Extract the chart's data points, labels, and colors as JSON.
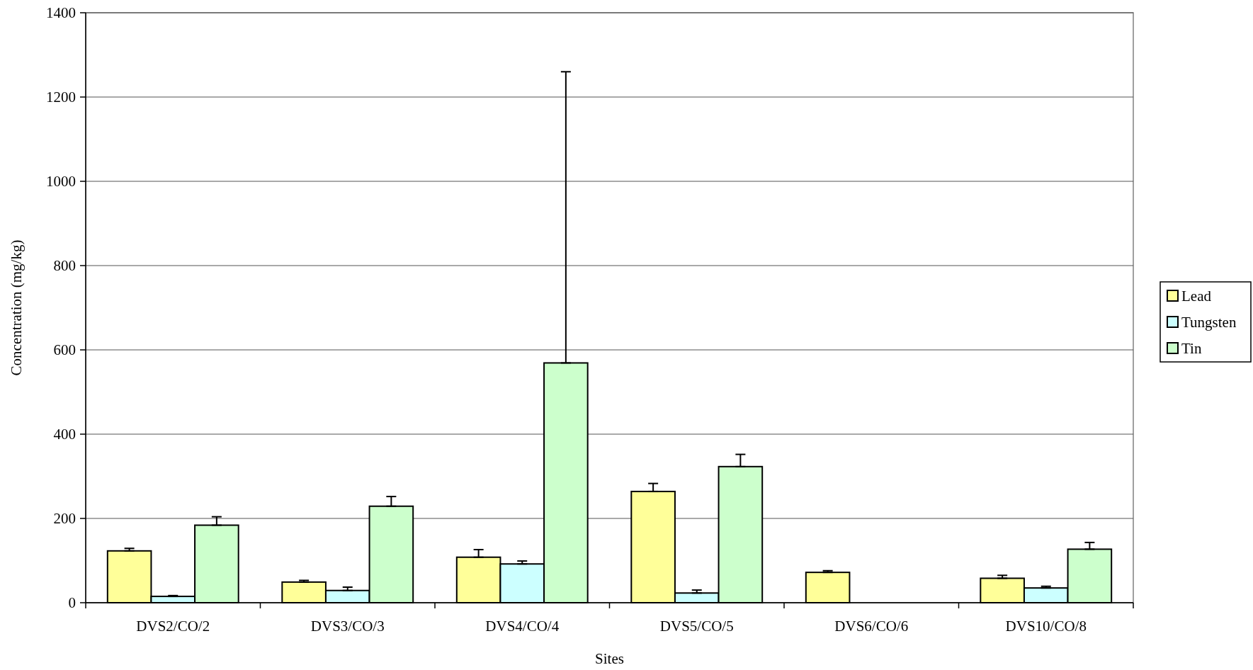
{
  "chart_data": {
    "type": "bar",
    "xlabel": "Sites",
    "ylabel": "Concentration (mg/kg)",
    "categories": [
      "DVS2/CO/2",
      "DVS3/CO/3",
      "DVS4/CO/4",
      "DVS5/CO/5",
      "DVS6/CO/6",
      "DVS10/CO/8"
    ],
    "series": [
      {
        "name": "Lead",
        "color": "#ffff99",
        "values": [
          123,
          49,
          108,
          264,
          72,
          58
        ],
        "errors": [
          [
            123,
            129
          ],
          [
            49,
            53
          ],
          [
            108,
            126
          ],
          [
            264,
            283
          ],
          [
            72,
            76
          ],
          [
            58,
            65
          ]
        ]
      },
      {
        "name": "Tungsten",
        "color": "#ccffff",
        "values": [
          15,
          29,
          92,
          23,
          0,
          35
        ],
        "errors": [
          [
            15,
            17
          ],
          [
            29,
            37
          ],
          [
            92,
            99
          ],
          [
            23,
            30
          ],
          null,
          [
            35,
            39
          ]
        ]
      },
      {
        "name": "Tin",
        "color": "#ccffcc",
        "values": [
          184,
          229,
          569,
          323,
          0,
          127
        ],
        "errors": [
          [
            184,
            204
          ],
          [
            229,
            252
          ],
          [
            569,
            1260
          ],
          [
            323,
            352
          ],
          null,
          [
            127,
            143
          ]
        ]
      }
    ],
    "ylim": [
      0,
      1400
    ],
    "yticks": [
      0,
      200,
      400,
      600,
      800,
      1000,
      1200,
      1400
    ],
    "grid": "y",
    "legend": "right"
  }
}
